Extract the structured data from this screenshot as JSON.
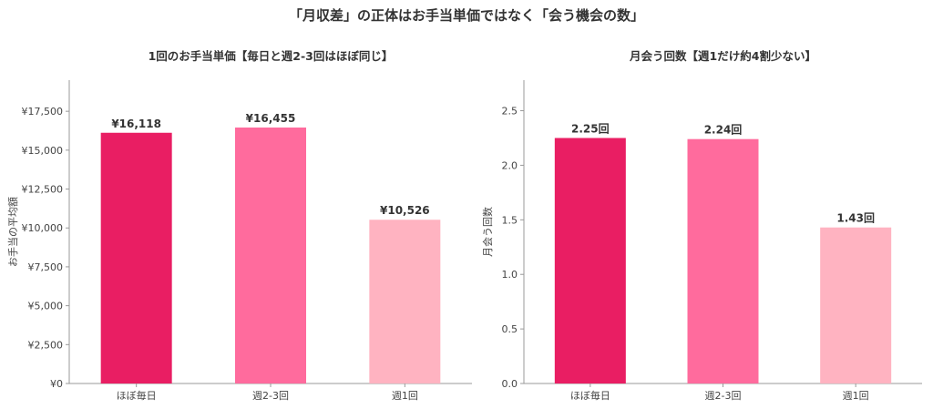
{
  "suptitle": "「月収差」の正体はお手当単価ではなく「会う機会の数」",
  "chart_data": [
    {
      "type": "bar",
      "title": "1回のお手当単価【毎日と週2-3回はほぼ同じ】",
      "ylabel": "お手当の平均額",
      "xlabel": "",
      "categories": [
        "ほぼ毎日",
        "週2-3回",
        "週1回"
      ],
      "values": [
        16118,
        16455,
        10526
      ],
      "data_labels": [
        "¥16,118",
        "¥16,455",
        "¥10,526"
      ],
      "colors": [
        "#e91e63",
        "#ff6b9d",
        "#ffb3c1"
      ],
      "ylim": [
        0,
        19500
      ],
      "yticks": [
        0,
        2500,
        5000,
        7500,
        10000,
        12500,
        15000,
        17500
      ],
      "ytick_labels": [
        "¥0",
        "¥2,500",
        "¥5,000",
        "¥7,500",
        "¥10,000",
        "¥12,500",
        "¥15,000",
        "¥17,500"
      ],
      "grid": false,
      "legend": "none"
    },
    {
      "type": "bar",
      "title": "月会う回数【週1だけ約4割少ない】",
      "ylabel": "月会う回数",
      "xlabel": "",
      "categories": [
        "ほぼ毎日",
        "週2-3回",
        "週1回"
      ],
      "values": [
        2.25,
        2.24,
        1.43
      ],
      "data_labels": [
        "2.25回",
        "2.24回",
        "1.43回"
      ],
      "colors": [
        "#e91e63",
        "#ff6b9d",
        "#ffb3c1"
      ],
      "ylim": [
        0,
        2.78
      ],
      "yticks": [
        0.0,
        0.5,
        1.0,
        1.5,
        2.0,
        2.5
      ],
      "ytick_labels": [
        "0.0",
        "0.5",
        "1.0",
        "1.5",
        "2.0",
        "2.5"
      ],
      "grid": false,
      "legend": "none"
    }
  ]
}
